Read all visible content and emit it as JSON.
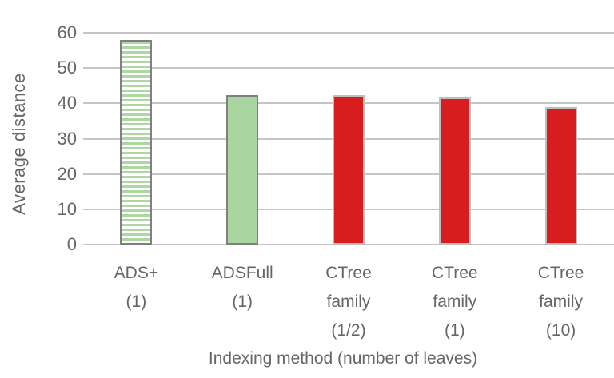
{
  "figure": {
    "background": "#ffffff",
    "text_color": "#666666",
    "gridline_color": "#c5c5c5"
  },
  "chart_data": {
    "type": "bar",
    "title": "",
    "xlabel": "Indexing method (number of leaves)",
    "ylabel": "Average distance",
    "ylim": [
      0,
      60
    ],
    "yticks": [
      0,
      10,
      20,
      30,
      40,
      50,
      60
    ],
    "grid": true,
    "legend_position": "none",
    "categories": [
      "ADS+ (1)",
      "ADSFull (1)",
      "CTree family (1/2)",
      "CTree family (1)",
      "CTree family (10)"
    ],
    "values": [
      58,
      42.3,
      42.3,
      41.7,
      39
    ],
    "bars": [
      {
        "label_lines": [
          "ADS+",
          "(1)"
        ],
        "value": 58,
        "fill_style": "horizontal-stripes",
        "fill_color": "#aed7a3",
        "stripe_background": "#ffffff",
        "border_color": "#7f7f7f"
      },
      {
        "label_lines": [
          "ADSFull",
          "(1)"
        ],
        "value": 42.3,
        "fill_style": "solid",
        "fill_color": "#a9d5a0",
        "border_color": "#7f7f7f"
      },
      {
        "label_lines": [
          "CTree",
          "family",
          "(1/2)"
        ],
        "value": 42.3,
        "fill_style": "solid",
        "fill_color": "#d71d1d",
        "border_color": "#bfbfbf"
      },
      {
        "label_lines": [
          "CTree",
          "family",
          "(1)"
        ],
        "value": 41.7,
        "fill_style": "solid",
        "fill_color": "#d71d1d",
        "border_color": "#bfbfbf"
      },
      {
        "label_lines": [
          "CTree",
          "family",
          "(10)"
        ],
        "value": 39,
        "fill_style": "solid",
        "fill_color": "#d71d1d",
        "border_color": "#bfbfbf"
      }
    ]
  }
}
